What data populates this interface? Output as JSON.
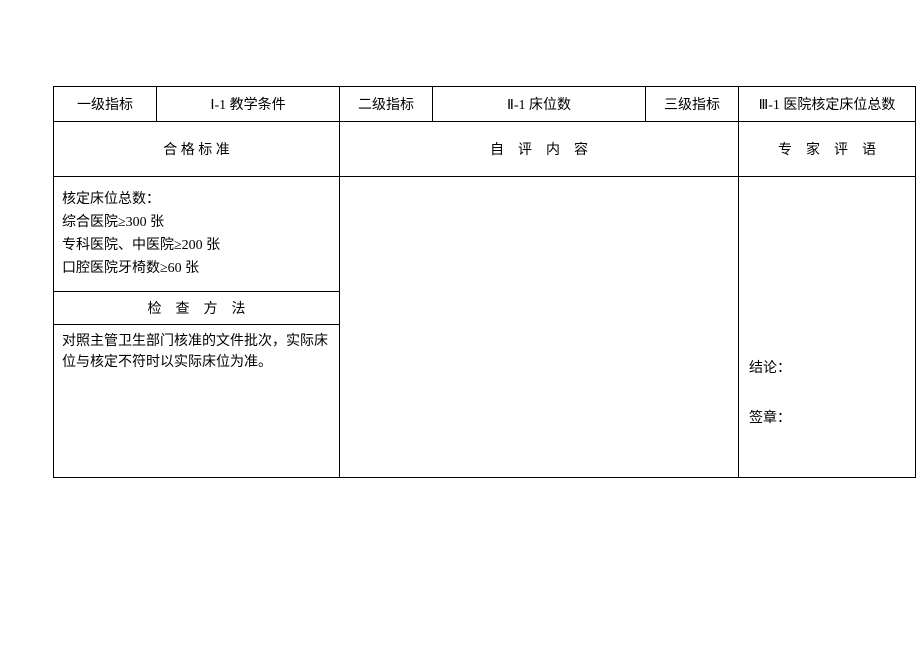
{
  "header": {
    "level1_label": "一级指标",
    "level1_value": "Ⅰ-1 教学条件",
    "level2_label": "二级指标",
    "level2_value": "Ⅱ-1 床位数",
    "level3_label": "三级指标",
    "level3_value": "Ⅲ-1 医院核定床位总数"
  },
  "subheaders": {
    "standard": "合 格 标 准",
    "selfeval": "自　评　内　容",
    "expert": "专　家　评　语"
  },
  "criteria": {
    "line1": "核定床位总数：",
    "line2": "综合医院≥300 张",
    "line3": "专科医院、中医院≥200 张",
    "line4": "口腔医院牙椅数≥60 张"
  },
  "method": {
    "header": "检　查　方　法",
    "content": "对照主管卫生部门核准的文件批次，实际床位与核定不符时以实际床位为准。"
  },
  "expert": {
    "conclusion": "结论：",
    "signature": "签章："
  },
  "style": {
    "font_family": "SimSun",
    "font_size": 14,
    "border_color": "#000000",
    "bg_color": "#ffffff",
    "text_color": "#000000"
  }
}
